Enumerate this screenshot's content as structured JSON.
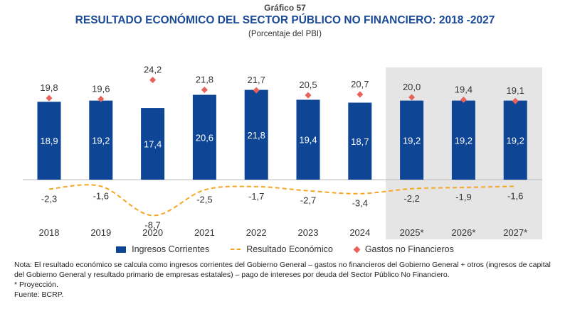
{
  "header": {
    "label": "Gráfico 57",
    "title": "RESULTADO ECONÓMICO DEL SECTOR PÚBLICO NO FINANCIERO: 2018 -2027",
    "subtitle": "(Porcentaje del PBI)"
  },
  "chart_data": {
    "type": "bar",
    "categories": [
      "2018",
      "2019",
      "2020",
      "2021",
      "2022",
      "2023",
      "2024",
      "2025*",
      "2026*",
      "2027*"
    ],
    "series": [
      {
        "name": "Ingresos Corrientes",
        "type": "bar",
        "values": [
          18.9,
          19.2,
          17.4,
          20.6,
          21.8,
          19.4,
          18.7,
          19.2,
          19.2,
          19.2
        ],
        "labels": [
          "18,9",
          "19,2",
          "17,4",
          "20,6",
          "21,8",
          "19,4",
          "18,7",
          "19,2",
          "19,2",
          "19,2"
        ]
      },
      {
        "name": "Resultado Económico",
        "type": "line",
        "style": "dashed",
        "values": [
          -2.3,
          -1.6,
          -8.7,
          -2.5,
          -1.7,
          -2.7,
          -3.4,
          -2.2,
          -1.9,
          -1.6
        ],
        "labels": [
          "-2,3",
          "-1,6",
          "-8,7",
          "-2,5",
          "-1,7",
          "-2,7",
          "-3,4",
          "-2,2",
          "-1,9",
          "-1,6"
        ]
      },
      {
        "name": "Gastos no Financieros",
        "type": "scatter",
        "marker": "diamond",
        "values": [
          19.8,
          19.6,
          24.2,
          21.8,
          21.7,
          20.5,
          20.7,
          20.0,
          19.4,
          19.1
        ],
        "labels": [
          "19,8",
          "19,6",
          "24,2",
          "21,8",
          "21,7",
          "20,5",
          "20,7",
          "20,0",
          "19,4",
          "19,1"
        ]
      }
    ],
    "projection_shaded_from": "2025*",
    "legend_position": "bottom",
    "grid": false,
    "colors": {
      "bar": "#0e4595",
      "line": "#f5a623",
      "diamond": "#e8615a",
      "shade": "#e5e5e5",
      "title": "#1a4a96"
    }
  },
  "notes": {
    "nota": "Nota: El resultado económico se calcula como ingresos corrientes del Gobierno General – gastos no financieros del Gobierno General + otros (ingresos de capital del Gobierno General y resultado primario de empresas estatales) – pago de intereses por deuda del Sector Público No Financiero.",
    "proyeccion": "* Proyección.",
    "fuente": "Fuente: BCRP."
  }
}
